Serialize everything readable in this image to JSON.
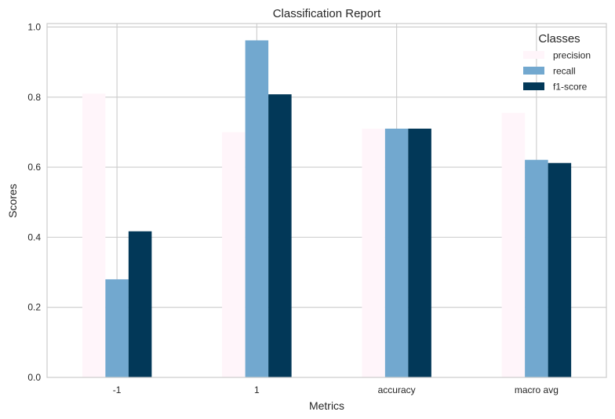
{
  "chart_data": {
    "type": "bar",
    "title": "Classification Report",
    "xlabel": "Metrics",
    "ylabel": "Scores",
    "categories": [
      "-1",
      "1",
      "accuracy",
      "macro avg"
    ],
    "ylim": [
      0,
      1.01
    ],
    "yticks": [
      0.0,
      0.2,
      0.4,
      0.6,
      0.8,
      1.0
    ],
    "ytick_labels": [
      "0.0",
      "0.2",
      "0.4",
      "0.6",
      "0.8",
      "1.0"
    ],
    "grid": true,
    "legend": {
      "title": "Classes",
      "placement": "top-right"
    },
    "series": [
      {
        "name": "precision",
        "color": "#fff5fa",
        "values": [
          0.81,
          0.7,
          0.71,
          0.755
        ]
      },
      {
        "name": "recall",
        "color": "#72a8cf",
        "values": [
          0.28,
          0.962,
          0.71,
          0.621
        ]
      },
      {
        "name": "f1-score",
        "color": "#023858",
        "values": [
          0.417,
          0.808,
          0.71,
          0.612
        ]
      }
    ]
  }
}
